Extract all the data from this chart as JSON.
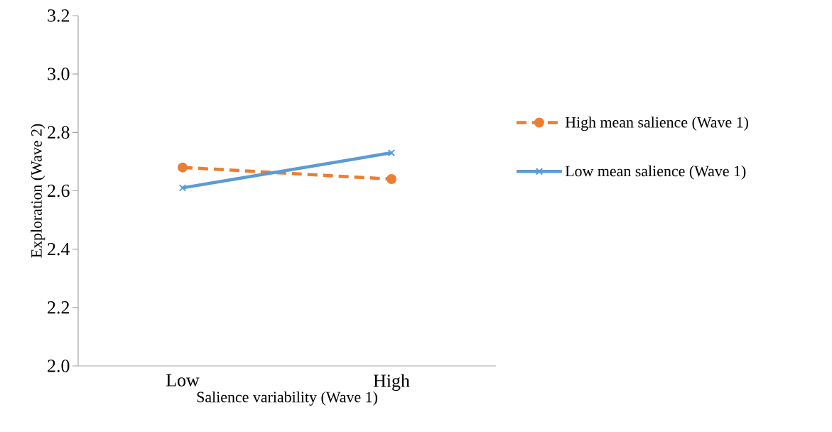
{
  "chart_data": {
    "type": "line",
    "xlabel": "Salience variability (Wave 1)",
    "ylabel": "Exploration (Wave 2)",
    "categories": [
      "Low",
      "High"
    ],
    "series": [
      {
        "name": "High mean salience (Wave 1)",
        "color": "#ed7d31",
        "values": [
          2.68,
          2.64
        ],
        "marker": "circle",
        "line_style": "dashed"
      },
      {
        "name": "Low mean salience (Wave 1)",
        "color": "#5b9bd5",
        "values": [
          2.61,
          2.73
        ],
        "marker": "cross",
        "line_style": "solid"
      }
    ],
    "ylim": [
      2,
      3.2
    ],
    "yticks": [
      {
        "value": 2,
        "label": "2.0"
      },
      2.2,
      2.4,
      2.6,
      2.8,
      {
        "value": 3,
        "label": "3.0"
      },
      3.2
    ],
    "grid": false,
    "legend": "right"
  }
}
